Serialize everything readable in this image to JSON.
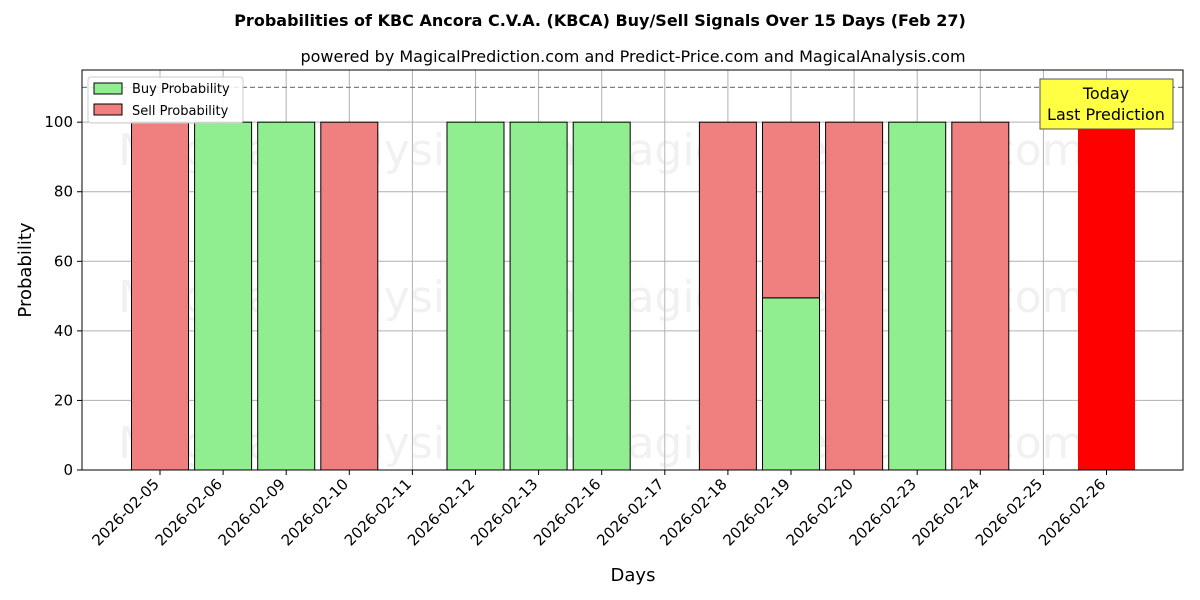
{
  "chart_data": {
    "type": "bar",
    "title": "Probabilities of KBC Ancora C.V.A. (KBCA) Buy/Sell Signals Over 15 Days (Feb 27)",
    "subtitle": "powered by MagicalPrediction.com and Predict-Price.com and MagicalAnalysis.com",
    "xlabel": "Days",
    "ylabel": "Probability",
    "ylim": [
      0,
      115
    ],
    "yticks": [
      0,
      20,
      40,
      60,
      80,
      100
    ],
    "threshold": 110,
    "grid": true,
    "legend_position": "top-left",
    "categories": [
      "2026-02-05",
      "2026-02-06",
      "2026-02-09",
      "2026-02-10",
      "2026-02-11",
      "2026-02-12",
      "2026-02-13",
      "2026-02-16",
      "2026-02-17",
      "2026-02-18",
      "2026-02-19",
      "2026-02-20",
      "2026-02-23",
      "2026-02-24",
      "2026-02-25",
      "2026-02-26"
    ],
    "series": [
      {
        "name": "Buy Probability",
        "color": "#90ee90",
        "values": [
          0,
          100,
          100,
          0,
          0,
          100,
          100,
          100,
          0,
          0,
          49.5,
          0,
          100,
          0,
          0,
          0
        ]
      },
      {
        "name": "Sell Probability",
        "color": "#f08080",
        "values": [
          100,
          0,
          0,
          100,
          0,
          0,
          0,
          0,
          0,
          100,
          50.5,
          100,
          0,
          100,
          0,
          0
        ]
      }
    ],
    "today_bar": {
      "category": "2026-02-26",
      "value": 100,
      "color": "#ff0000"
    },
    "annotation": {
      "lines": [
        "Today",
        "Last Prediction"
      ],
      "box_color": "#ffff44"
    },
    "watermarks": [
      "MagicalAnalysis.com",
      "MagicalPrediction.com"
    ]
  }
}
